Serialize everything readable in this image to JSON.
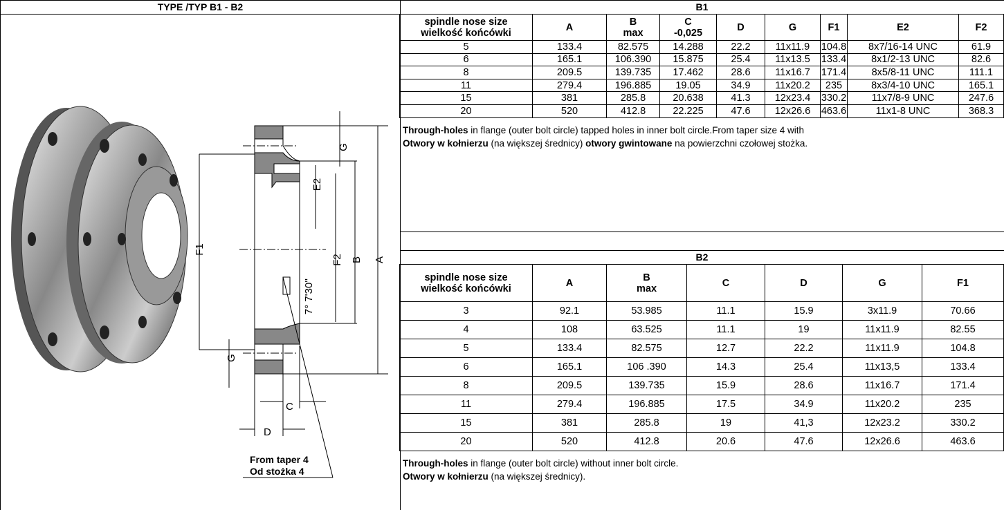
{
  "left": {
    "title": "TYPE /TYP B1 - B2",
    "drawing_labels": {
      "g_top": "G",
      "e2": "E2",
      "f1": "F1",
      "f2": "F2",
      "b": "B",
      "a": "A",
      "angle": "7° 7'30''",
      "g_bottom": "G",
      "c": "C",
      "d": "D"
    },
    "note": [
      "From taper 4",
      "Od stożka 4"
    ]
  },
  "b1": {
    "title": "B1",
    "columns": [
      [
        "spindle nose size",
        "wielkość końcówki"
      ],
      [
        "A"
      ],
      [
        "B",
        "max"
      ],
      [
        "C",
        "-0,025"
      ],
      [
        "D"
      ],
      [
        "G"
      ],
      [
        "F1"
      ],
      [
        "E2"
      ],
      [
        "F2"
      ]
    ],
    "rows": [
      [
        "5",
        "133.4",
        "82.575",
        "14.288",
        "22.2",
        "11x11.9",
        "104.8",
        "8x7/16-14 UNC",
        "61.9"
      ],
      [
        "6",
        "165.1",
        "106.390",
        "15.875",
        "25.4",
        "11x13.5",
        "133.4",
        "8x1/2-13 UNC",
        "82.6"
      ],
      [
        "8",
        "209.5",
        "139.735",
        "17.462",
        "28.6",
        "11x16.7",
        "171.4",
        "8x5/8-11 UNC",
        "111.1"
      ],
      [
        "11",
        "279.4",
        "196.885",
        "19.05",
        "34.9",
        "11x20.2",
        "235",
        "8x3/4-10 UNC",
        "165.1"
      ],
      [
        "15",
        "381",
        "285.8",
        "20.638",
        "41.3",
        "12x23.4",
        "330.2",
        "11x7/8-9 UNC",
        "247.6"
      ],
      [
        "20",
        "520",
        "412.8",
        "22.225",
        "47.6",
        "12x26.6",
        "463.6",
        "11x1-8 UNC",
        "368.3"
      ]
    ],
    "note": [
      [
        {
          "text": "Through-holes",
          "bold": true
        },
        {
          "text": " in flange (outer bolt circle) tapped holes in inner bolt circle.From taper size 4 with",
          "bold": false
        }
      ],
      [
        {
          "text": "Otwory w kołnierzu",
          "bold": true
        },
        {
          "text": " (na większej średnicy) ",
          "bold": false
        },
        {
          "text": "otwory gwintowane",
          "bold": true
        },
        {
          "text": " na powierzchni czołowej stożka.",
          "bold": false
        }
      ]
    ]
  },
  "b2": {
    "title": "B2",
    "columns": [
      [
        "spindle nose size",
        "wielkość końcówki"
      ],
      [
        "A"
      ],
      [
        "B",
        "max"
      ],
      [
        "C"
      ],
      [
        "D"
      ],
      [
        "G"
      ],
      [
        "F1"
      ]
    ],
    "rows": [
      [
        "3",
        "92.1",
        "53.985",
        "11.1",
        "15.9",
        "3x11.9",
        "70.66"
      ],
      [
        "4",
        "108",
        "63.525",
        "11.1",
        "19",
        "11x11.9",
        "82.55"
      ],
      [
        "5",
        "133.4",
        "82.575",
        "12.7",
        "22.2",
        "11x11.9",
        "104.8"
      ],
      [
        "6",
        "165.1",
        "106 .390",
        "14.3",
        "25.4",
        "11x13,5",
        "133.4"
      ],
      [
        "8",
        "209.5",
        "139.735",
        "15.9",
        "28.6",
        "11x16.7",
        "171.4"
      ],
      [
        "11",
        "279.4",
        "196.885",
        "17.5",
        "34.9",
        "11x20.2",
        "235"
      ],
      [
        "15",
        "381",
        "285.8",
        "19",
        "41,3",
        "12x23.2",
        "330.2"
      ],
      [
        "20",
        "520",
        "412.8",
        "20.6",
        "47.6",
        "12x26.6",
        "463.6"
      ]
    ],
    "note": [
      [
        {
          "text": "Through-holes",
          "bold": true
        },
        {
          "text": " in flange (outer bolt circle) without inner bolt circle.",
          "bold": false
        }
      ],
      [
        {
          "text": "Otwory w kołnierzu",
          "bold": true
        },
        {
          "text": " (na większej średnicy).",
          "bold": false
        }
      ]
    ]
  }
}
